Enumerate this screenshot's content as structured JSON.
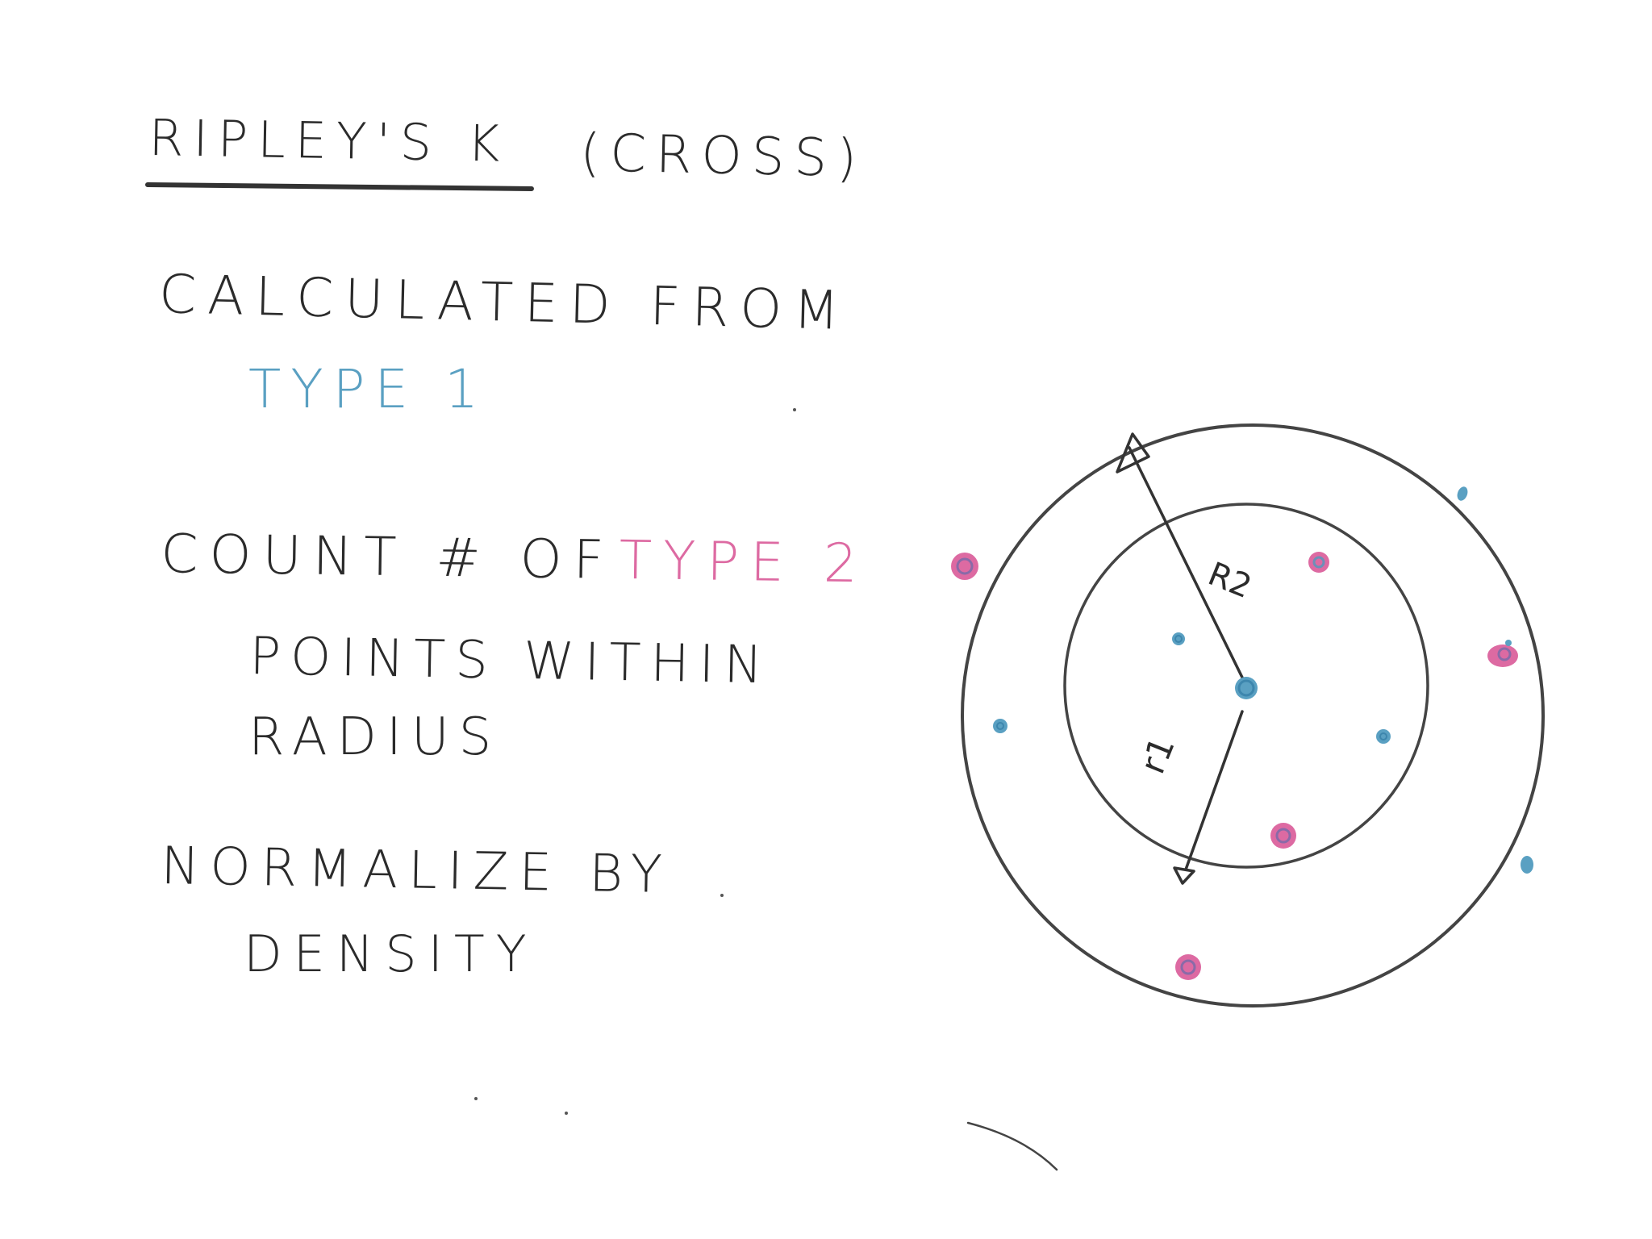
{
  "title": "Ripley's K",
  "subtitle": "(Cross)",
  "steps": {
    "calculated_from": "Calculated from",
    "type1": "Type 1",
    "count_prefix": "Count # of",
    "type2": "Type 2",
    "points_within": "points within",
    "radius": "radius",
    "normalize": "Normalize by",
    "density": "density"
  },
  "diagram": {
    "outer_radius_label": "R2",
    "inner_radius_label": "r1"
  },
  "colors": {
    "ink": "#2b2b2b",
    "type1": "#5aa0c2",
    "type2": "#dd6aa2"
  }
}
